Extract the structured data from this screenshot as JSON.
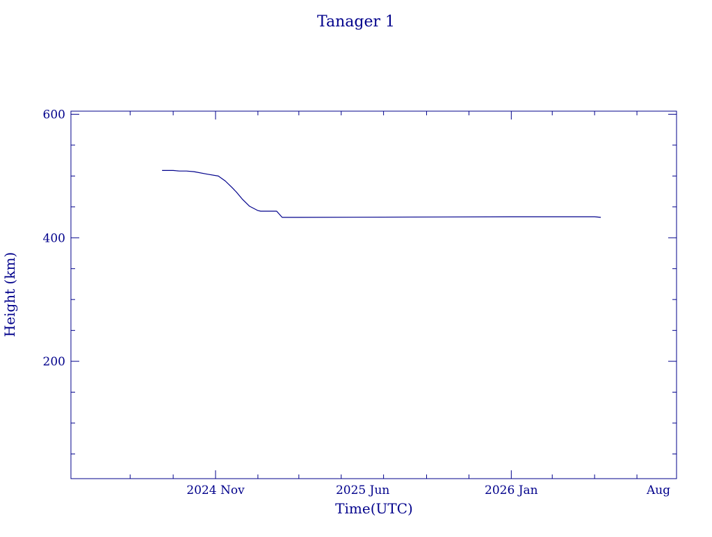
{
  "colors": {
    "ink": "#00008b",
    "background": "#ffffff"
  },
  "chart_data": {
    "type": "line",
    "title": "Tanager 1",
    "xlabel": "Time(UTC)",
    "ylabel": "Height (km)",
    "x_tick_labels": [
      "2024 Nov",
      "2025 Jun",
      "2026 Jan",
      "Aug"
    ],
    "y_tick_labels": [
      "600",
      "400",
      "200"
    ],
    "ylim": [
      10,
      605
    ],
    "y_major_ticks": [
      200,
      400,
      600
    ],
    "y_minor_step": 50,
    "grid": false,
    "x_axis_note": "time axis with month ticks; major labels at 2024 Nov, 2025 Jun, 2026 Jan, 2026 Aug",
    "series": [
      {
        "x": [
          "2024-08-16",
          "2024-09-01",
          "2024-09-10",
          "2024-09-20",
          "2024-10-01",
          "2024-10-20",
          "2024-11-05",
          "2024-11-15",
          "2024-11-25",
          "2024-12-01",
          "2024-12-10",
          "2024-12-20",
          "2025-01-01",
          "2025-01-05",
          "2025-01-10",
          "2025-01-20",
          "2025-01-28",
          "2025-02-05",
          "2025-03-01",
          "2026-01-01",
          "2026-04-01",
          "2026-05-01",
          "2026-05-10"
        ],
        "y": [
          509,
          509,
          508,
          508,
          507,
          503,
          500,
          492,
          481,
          474,
          462,
          451,
          444,
          443,
          443,
          443,
          443,
          433,
          433,
          434,
          434,
          434,
          433
        ]
      }
    ]
  }
}
